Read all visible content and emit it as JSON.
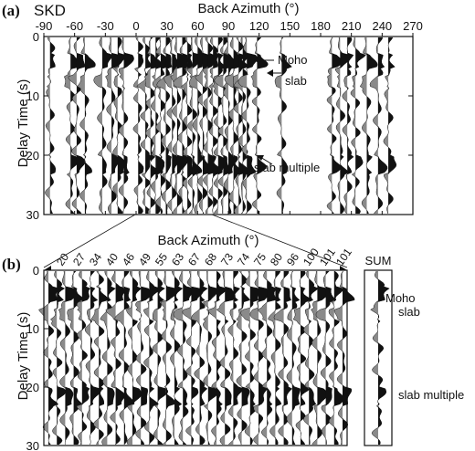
{
  "chart_data": [
    {
      "type": "seismic-wiggle",
      "panel_label": "(a)",
      "title": "SKD",
      "xlabel": "Back Azimuth (°)",
      "ylabel": "Delay Time (s)",
      "x_ticks": [
        -90,
        -60,
        -30,
        0,
        30,
        60,
        90,
        120,
        150,
        180,
        210,
        240,
        270
      ],
      "xlim": [
        -90,
        270
      ],
      "y_ticks": [
        0,
        10,
        20,
        30
      ],
      "ylim": [
        0,
        30
      ],
      "trace_back_azimuths": [
        -84,
        -64,
        -58,
        -50,
        -33,
        -24,
        -18,
        -12,
        2,
        9,
        14,
        19,
        24,
        29,
        35,
        40,
        45,
        50,
        55,
        60,
        65,
        70,
        75,
        80,
        85,
        90,
        95,
        100,
        104,
        108,
        118,
        142,
        191,
        199,
        206,
        214,
        225,
        236,
        246
      ],
      "annotations": [
        {
          "text": "Moho",
          "delay": 4
        },
        {
          "text": "slab",
          "delay": 7
        },
        {
          "text": "slab multiple",
          "delay": 22
        }
      ]
    },
    {
      "type": "seismic-wiggle",
      "panel_label": "(b)",
      "xlabel": "Back Azimuth (°)",
      "ylabel": "Delay Time (s)",
      "trace_labels": [
        "20",
        "27",
        "34",
        "40",
        "46",
        "49",
        "55",
        "63",
        "67",
        "68",
        "73",
        "74",
        "75",
        "80",
        "96",
        "100",
        "101",
        "101"
      ],
      "y_ticks": [
        0,
        10,
        20,
        30
      ],
      "ylim": [
        0,
        30
      ],
      "sum_label": "SUM",
      "sum_annotations": [
        {
          "text": "Moho",
          "delay": 4
        },
        {
          "text": "slab",
          "delay": 7
        },
        {
          "text": "slab multiple",
          "delay": 22
        }
      ]
    }
  ],
  "colors": {
    "positive_fill": "#111111",
    "negative_fill": "#8a8a8a",
    "axis": "#111111"
  }
}
